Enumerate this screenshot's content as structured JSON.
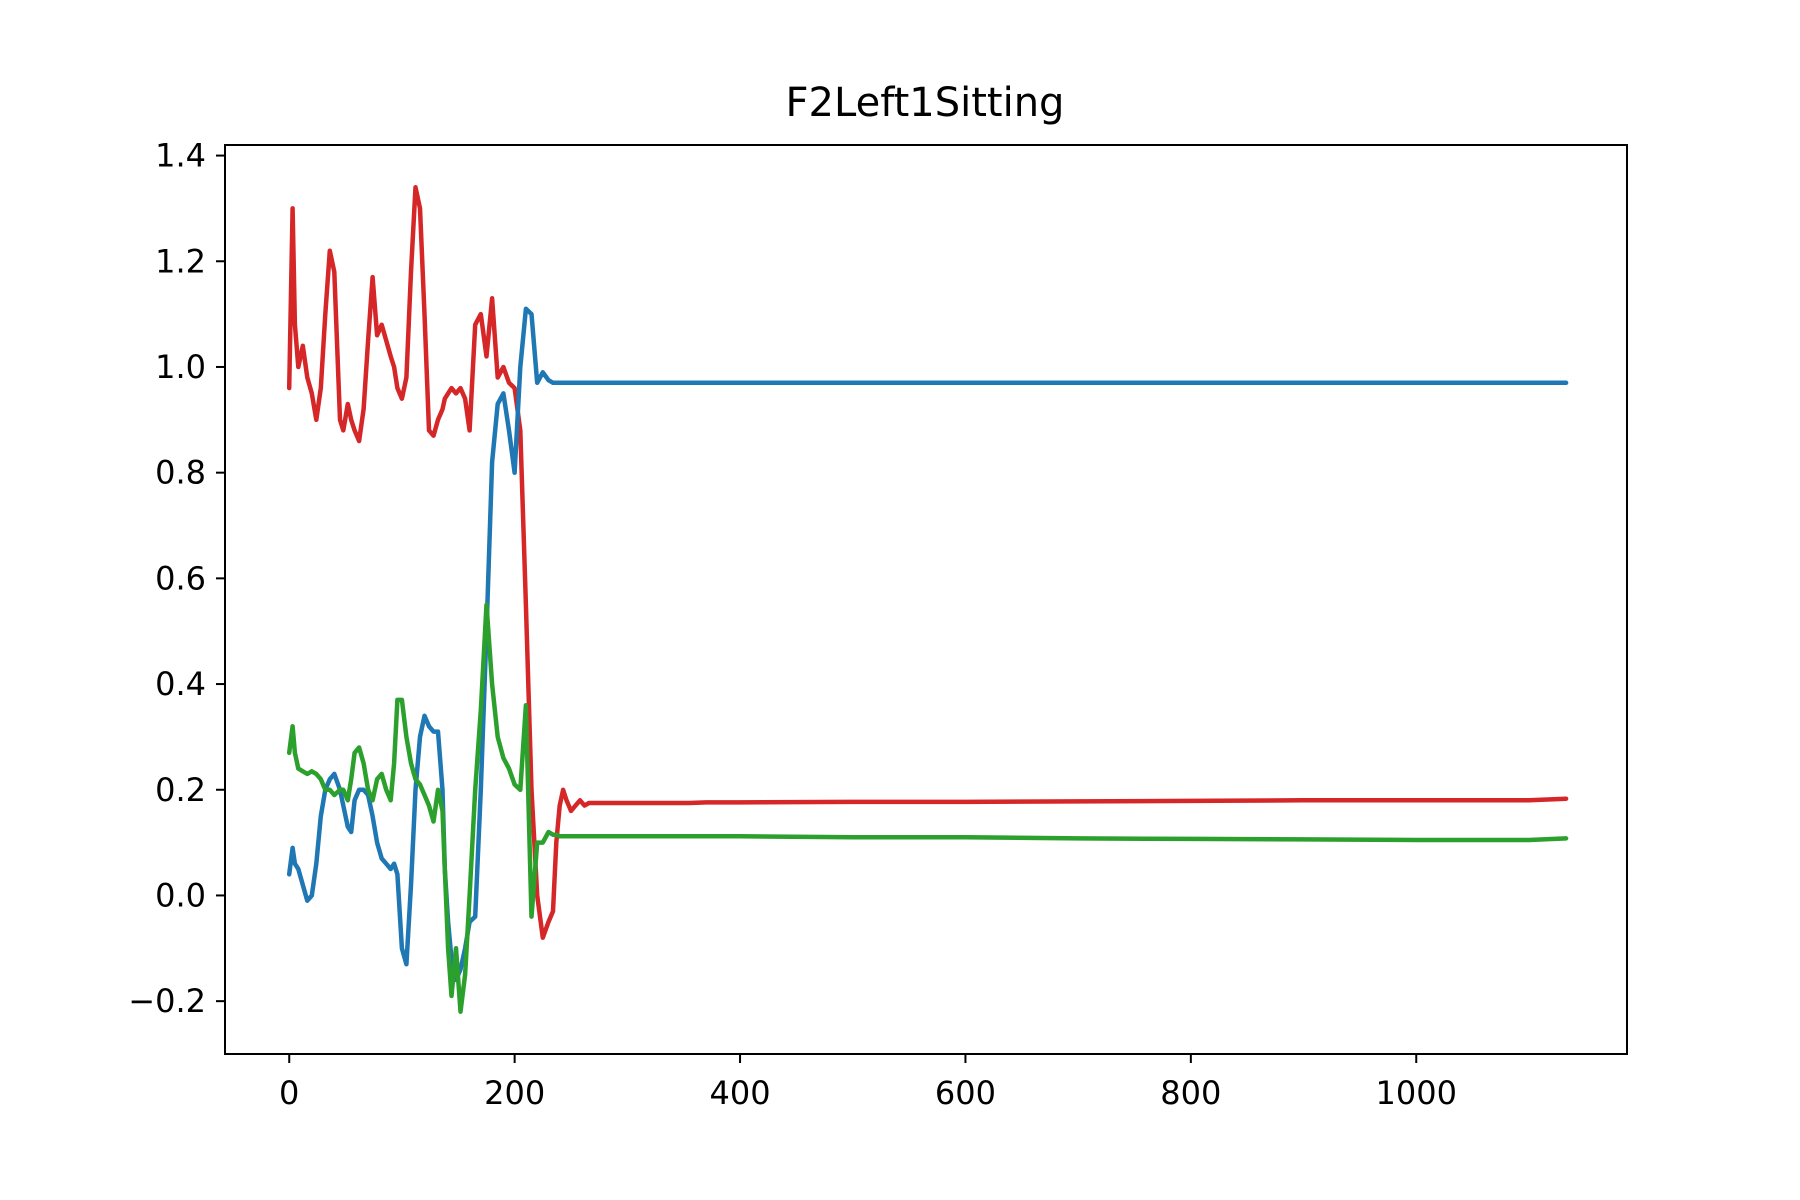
{
  "chart_data": {
    "type": "line",
    "title": "F2Left1Sitting",
    "xlabel": "",
    "ylabel": "",
    "xlim": [
      -57,
      1187
    ],
    "ylim": [
      -0.3,
      1.42
    ],
    "x_ticks": [
      0,
      200,
      400,
      600,
      800,
      1000
    ],
    "x_tick_labels": [
      "0",
      "200",
      "400",
      "600",
      "800",
      "1000"
    ],
    "y_ticks": [
      -0.2,
      0.0,
      0.2,
      0.4,
      0.6,
      0.8,
      1.0,
      1.2,
      1.4
    ],
    "y_tick_labels": [
      "−0.2",
      "0.0",
      "0.2",
      "0.4",
      "0.6",
      "0.8",
      "1.0",
      "1.2",
      "1.4"
    ],
    "grid": false,
    "series": [
      {
        "color": "#d62728",
        "x": [
          0,
          3,
          5,
          8,
          12,
          16,
          20,
          24,
          28,
          32,
          36,
          40,
          45,
          48,
          52,
          55,
          58,
          62,
          66,
          70,
          74,
          78,
          82,
          86,
          90,
          93,
          96,
          100,
          104,
          108,
          112,
          116,
          120,
          124,
          128,
          132,
          136,
          138,
          141,
          144,
          148,
          152,
          156,
          160,
          165,
          170,
          175,
          180,
          185,
          190,
          195,
          200,
          205,
          210,
          215,
          220,
          225,
          230,
          234,
          237,
          240,
          243,
          246,
          250,
          254,
          258,
          262,
          266,
          270,
          274,
          278,
          282,
          286,
          290,
          294,
          298,
          302,
          306,
          310,
          314,
          318,
          322,
          328,
          335,
          345,
          355,
          370,
          400,
          500,
          600,
          700,
          800,
          900,
          1000,
          1100,
          1133
        ],
        "y": [
          0.96,
          1.3,
          1.08,
          1.0,
          1.04,
          0.98,
          0.95,
          0.9,
          0.96,
          1.1,
          1.22,
          1.18,
          0.9,
          0.88,
          0.93,
          0.9,
          0.88,
          0.86,
          0.92,
          1.05,
          1.17,
          1.06,
          1.08,
          1.05,
          1.02,
          1.0,
          0.96,
          0.94,
          0.98,
          1.18,
          1.34,
          1.3,
          1.1,
          0.88,
          0.87,
          0.9,
          0.92,
          0.94,
          0.95,
          0.96,
          0.95,
          0.96,
          0.94,
          0.88,
          1.08,
          1.1,
          1.02,
          1.13,
          0.98,
          1.0,
          0.97,
          0.96,
          0.88,
          0.55,
          0.2,
          0.0,
          -0.08,
          -0.05,
          -0.03,
          0.1,
          0.17,
          0.2,
          0.18,
          0.16,
          0.17,
          0.18,
          0.17,
          0.175,
          0.175,
          0.175,
          0.175,
          0.175,
          0.175,
          0.175,
          0.175,
          0.175,
          0.175,
          0.175,
          0.175,
          0.175,
          0.175,
          0.175,
          0.175,
          0.175,
          0.175,
          0.175,
          0.176,
          0.176,
          0.177,
          0.177,
          0.178,
          0.179,
          0.18,
          0.18,
          0.18,
          0.183
        ]
      },
      {
        "color": "#1f77b4",
        "x": [
          0,
          3,
          5,
          8,
          12,
          16,
          20,
          24,
          28,
          32,
          36,
          40,
          45,
          48,
          52,
          55,
          58,
          62,
          66,
          70,
          74,
          78,
          82,
          86,
          90,
          93,
          96,
          100,
          104,
          108,
          112,
          116,
          120,
          124,
          128,
          132,
          136,
          138,
          141,
          144,
          148,
          152,
          156,
          160,
          165,
          170,
          175,
          180,
          185,
          190,
          195,
          200,
          205,
          210,
          215,
          220,
          225,
          230,
          234,
          237,
          240,
          243,
          246,
          250,
          254,
          258,
          262,
          266,
          270,
          274,
          278,
          282,
          286,
          290,
          294,
          298,
          302,
          306,
          310,
          314,
          318,
          322,
          328,
          335,
          345,
          355,
          370,
          400,
          500,
          600,
          700,
          800,
          900,
          1000,
          1100,
          1133
        ],
        "y": [
          0.04,
          0.09,
          0.06,
          0.05,
          0.02,
          -0.01,
          0.0,
          0.06,
          0.15,
          0.2,
          0.22,
          0.23,
          0.2,
          0.17,
          0.13,
          0.12,
          0.18,
          0.2,
          0.2,
          0.19,
          0.15,
          0.1,
          0.07,
          0.06,
          0.05,
          0.06,
          0.04,
          -0.1,
          -0.13,
          0.02,
          0.2,
          0.3,
          0.34,
          0.32,
          0.31,
          0.31,
          0.2,
          0.05,
          -0.05,
          -0.12,
          -0.16,
          -0.14,
          -0.1,
          -0.05,
          -0.04,
          0.2,
          0.5,
          0.82,
          0.93,
          0.95,
          0.88,
          0.8,
          1.0,
          1.11,
          1.1,
          0.97,
          0.99,
          0.975,
          0.97,
          0.97,
          0.97,
          0.97,
          0.97,
          0.97,
          0.97,
          0.97,
          0.97,
          0.97,
          0.97,
          0.97,
          0.97,
          0.97,
          0.97,
          0.97,
          0.97,
          0.97,
          0.97,
          0.97,
          0.97,
          0.97,
          0.97,
          0.97,
          0.97,
          0.97,
          0.97,
          0.97,
          0.97,
          0.97,
          0.97,
          0.97,
          0.97,
          0.97,
          0.97,
          0.97,
          0.97,
          0.97
        ]
      },
      {
        "color": "#2ca02c",
        "x": [
          0,
          3,
          5,
          8,
          12,
          16,
          20,
          24,
          28,
          32,
          36,
          40,
          45,
          48,
          52,
          55,
          58,
          62,
          66,
          70,
          74,
          78,
          82,
          86,
          90,
          93,
          96,
          100,
          104,
          108,
          112,
          116,
          120,
          124,
          128,
          132,
          136,
          138,
          141,
          144,
          148,
          152,
          156,
          160,
          165,
          170,
          175,
          180,
          185,
          190,
          195,
          200,
          205,
          210,
          215,
          220,
          225,
          230,
          234,
          237,
          240,
          243,
          246,
          250,
          254,
          258,
          262,
          266,
          270,
          274,
          278,
          282,
          286,
          290,
          294,
          298,
          302,
          306,
          310,
          314,
          318,
          322,
          328,
          335,
          345,
          355,
          370,
          400,
          500,
          600,
          700,
          800,
          900,
          1000,
          1100,
          1133
        ],
        "y": [
          0.27,
          0.32,
          0.27,
          0.24,
          0.235,
          0.23,
          0.235,
          0.23,
          0.22,
          0.2,
          0.2,
          0.19,
          0.2,
          0.2,
          0.18,
          0.22,
          0.27,
          0.28,
          0.25,
          0.2,
          0.18,
          0.22,
          0.23,
          0.2,
          0.18,
          0.25,
          0.37,
          0.37,
          0.3,
          0.25,
          0.22,
          0.21,
          0.19,
          0.17,
          0.14,
          0.2,
          0.16,
          0.05,
          -0.1,
          -0.19,
          -0.1,
          -0.22,
          -0.15,
          0.0,
          0.2,
          0.35,
          0.55,
          0.4,
          0.3,
          0.26,
          0.24,
          0.21,
          0.2,
          0.36,
          -0.04,
          0.1,
          0.1,
          0.12,
          0.115,
          0.115,
          0.112,
          0.112,
          0.112,
          0.112,
          0.112,
          0.112,
          0.112,
          0.112,
          0.112,
          0.112,
          0.112,
          0.112,
          0.112,
          0.112,
          0.112,
          0.112,
          0.112,
          0.112,
          0.112,
          0.112,
          0.112,
          0.112,
          0.112,
          0.112,
          0.112,
          0.112,
          0.112,
          0.112,
          0.11,
          0.11,
          0.108,
          0.107,
          0.106,
          0.105,
          0.105,
          0.108
        ]
      }
    ]
  }
}
